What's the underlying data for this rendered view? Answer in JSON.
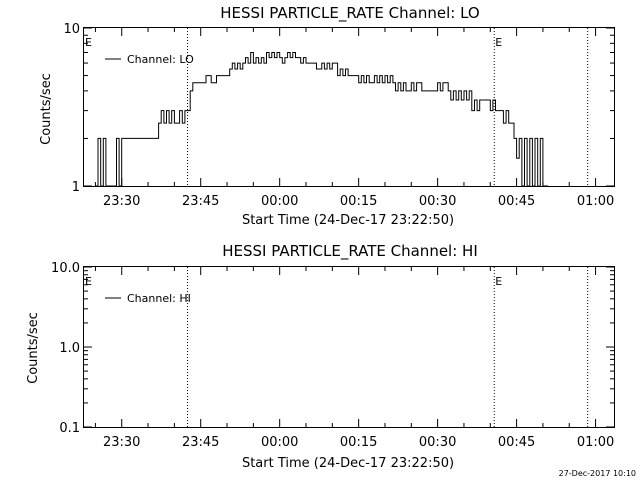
{
  "chart_data": [
    {
      "type": "line",
      "title": "HESSI PARTICLE_RATE Channel: LO",
      "xlabel": "Start Time (24-Dec-17 23:22:50)",
      "ylabel": "Counts/sec",
      "y_scale": "log",
      "ylim": [
        1,
        10
      ],
      "ytick_labels": [
        "1",
        "10"
      ],
      "xlim": [
        "23:22:50",
        "01:03:30"
      ],
      "xticks": [
        {
          "time": "23:30",
          "label": "23:30"
        },
        {
          "time": "23:45",
          "label": "23:45"
        },
        {
          "time": "00:00",
          "label": "00:00"
        },
        {
          "time": "00:15",
          "label": "00:15"
        },
        {
          "time": "00:30",
          "label": "00:30"
        },
        {
          "time": "00:45",
          "label": "00:45"
        },
        {
          "time": "01:00",
          "label": "01:00"
        }
      ],
      "legend_location": "top-left",
      "series": [
        {
          "name": "Channel: LO",
          "color": "#000000",
          "points": [
            [
              "23:25:00",
              1
            ],
            [
              "23:25:30",
              2
            ],
            [
              "23:26:00",
              1
            ],
            [
              "23:26:30",
              2
            ],
            [
              "23:27:00",
              1
            ],
            [
              "23:28:00",
              1
            ],
            [
              "23:29:00",
              2
            ],
            [
              "23:29:30",
              1
            ],
            [
              "23:30:00",
              2
            ],
            [
              "23:32:00",
              2
            ],
            [
              "23:34:00",
              2
            ],
            [
              "23:36:00",
              2
            ],
            [
              "23:37:00",
              2.5
            ],
            [
              "23:37:30",
              3
            ],
            [
              "23:38:00",
              2.5
            ],
            [
              "23:38:30",
              3
            ],
            [
              "23:39:00",
              2.5
            ],
            [
              "23:39:30",
              3
            ],
            [
              "23:40:00",
              2.5
            ],
            [
              "23:41:00",
              3
            ],
            [
              "23:41:30",
              2.5
            ],
            [
              "23:42:00",
              3
            ],
            [
              "23:43:00",
              4
            ],
            [
              "23:43:30",
              4.5
            ],
            [
              "23:44:00",
              4.5
            ],
            [
              "23:45:00",
              4.5
            ],
            [
              "23:46:00",
              5
            ],
            [
              "23:47:00",
              4.5
            ],
            [
              "23:48:00",
              5
            ],
            [
              "23:49:00",
              5
            ],
            [
              "23:50:00",
              5
            ],
            [
              "23:50:30",
              5.5
            ],
            [
              "23:51:00",
              6
            ],
            [
              "23:51:30",
              5.5
            ],
            [
              "23:52:00",
              6
            ],
            [
              "23:52:30",
              5.5
            ],
            [
              "23:53:00",
              6
            ],
            [
              "23:53:30",
              6.5
            ],
            [
              "23:54:00",
              6
            ],
            [
              "23:54:30",
              7
            ],
            [
              "23:55:00",
              6
            ],
            [
              "23:55:30",
              6.5
            ],
            [
              "23:56:00",
              6
            ],
            [
              "23:56:30",
              6.5
            ],
            [
              "23:57:00",
              6
            ],
            [
              "23:57:30",
              7
            ],
            [
              "23:58:00",
              6.5
            ],
            [
              "23:58:30",
              7
            ],
            [
              "23:59:00",
              6.5
            ],
            [
              "23:59:30",
              7
            ],
            [
              "00:00:00",
              6.5
            ],
            [
              "00:00:30",
              6
            ],
            [
              "00:01:00",
              6.5
            ],
            [
              "00:01:30",
              7
            ],
            [
              "00:02:00",
              6.5
            ],
            [
              "00:02:30",
              7
            ],
            [
              "00:03:00",
              6.5
            ],
            [
              "00:04:00",
              6
            ],
            [
              "00:04:30",
              6.5
            ],
            [
              "00:05:00",
              6
            ],
            [
              "00:06:00",
              6
            ],
            [
              "00:07:00",
              5.5
            ],
            [
              "00:08:00",
              6
            ],
            [
              "00:08:30",
              5.5
            ],
            [
              "00:09:00",
              6
            ],
            [
              "00:09:30",
              5.5
            ],
            [
              "00:10:00",
              6
            ],
            [
              "00:11:00",
              5
            ],
            [
              "00:11:30",
              5.5
            ],
            [
              "00:12:00",
              5
            ],
            [
              "00:12:30",
              5.5
            ],
            [
              "00:13:00",
              5
            ],
            [
              "00:14:00",
              5
            ],
            [
              "00:15:00",
              4.5
            ],
            [
              "00:15:30",
              5
            ],
            [
              "00:16:00",
              4.5
            ],
            [
              "00:16:30",
              5
            ],
            [
              "00:17:00",
              4.5
            ],
            [
              "00:18:00",
              5
            ],
            [
              "00:18:30",
              4.5
            ],
            [
              "00:19:00",
              5
            ],
            [
              "00:19:30",
              4.5
            ],
            [
              "00:20:00",
              5
            ],
            [
              "00:20:30",
              4.5
            ],
            [
              "00:21:00",
              5
            ],
            [
              "00:21:30",
              4.5
            ],
            [
              "00:22:00",
              4
            ],
            [
              "00:22:30",
              4.5
            ],
            [
              "00:23:00",
              4
            ],
            [
              "00:23:30",
              4.5
            ],
            [
              "00:24:00",
              4
            ],
            [
              "00:25:00",
              4.5
            ],
            [
              "00:25:30",
              4
            ],
            [
              "00:26:00",
              4.5
            ],
            [
              "00:27:00",
              4
            ],
            [
              "00:28:00",
              4
            ],
            [
              "00:29:00",
              4
            ],
            [
              "00:30:00",
              4.5
            ],
            [
              "00:30:30",
              4
            ],
            [
              "00:31:00",
              4.5
            ],
            [
              "00:32:00",
              4
            ],
            [
              "00:32:30",
              3.5
            ],
            [
              "00:33:00",
              4
            ],
            [
              "00:33:30",
              3.5
            ],
            [
              "00:34:00",
              4
            ],
            [
              "00:34:30",
              3.5
            ],
            [
              "00:35:00",
              4
            ],
            [
              "00:35:30",
              3.5
            ],
            [
              "00:36:00",
              4
            ],
            [
              "00:36:30",
              3
            ],
            [
              "00:37:00",
              3.5
            ],
            [
              "00:37:30",
              3
            ],
            [
              "00:38:00",
              3.5
            ],
            [
              "00:39:00",
              3.5
            ],
            [
              "00:40:00",
              3
            ],
            [
              "00:40:30",
              3.5
            ],
            [
              "00:41:00",
              3
            ],
            [
              "00:42:00",
              3
            ],
            [
              "00:42:30",
              2.5
            ],
            [
              "00:43:00",
              3
            ],
            [
              "00:43:30",
              2.5
            ],
            [
              "00:44:00",
              2.5
            ],
            [
              "00:44:30",
              2
            ],
            [
              "00:45:00",
              1.5
            ],
            [
              "00:45:30",
              2
            ],
            [
              "00:46:00",
              1
            ],
            [
              "00:46:30",
              2
            ],
            [
              "00:47:00",
              1
            ],
            [
              "00:47:30",
              2
            ],
            [
              "00:48:00",
              1
            ],
            [
              "00:48:30",
              2
            ],
            [
              "00:49:00",
              1
            ],
            [
              "00:49:30",
              2
            ],
            [
              "00:50:00",
              1
            ],
            [
              "00:51:00",
              1
            ]
          ]
        }
      ],
      "event_markers": [
        {
          "time": "23:22:50",
          "label": "E"
        },
        {
          "time": "00:40:45",
          "label": "E"
        }
      ],
      "dotted_lines": [
        "23:42:30",
        "00:40:45",
        "00:58:30"
      ]
    },
    {
      "type": "line",
      "title": "HESSI PARTICLE_RATE Channel: HI",
      "xlabel": "Start Time (24-Dec-17 23:22:50)",
      "ylabel": "Counts/sec",
      "y_scale": "log",
      "ylim": [
        0.1,
        10
      ],
      "ytick_labels": [
        "0.1",
        "1.0",
        "10.0"
      ],
      "xlim": [
        "23:22:50",
        "01:03:30"
      ],
      "xticks": [
        {
          "time": "23:30",
          "label": "23:30"
        },
        {
          "time": "23:45",
          "label": "23:45"
        },
        {
          "time": "00:00",
          "label": "00:00"
        },
        {
          "time": "00:15",
          "label": "00:15"
        },
        {
          "time": "00:30",
          "label": "00:30"
        },
        {
          "time": "00:45",
          "label": "00:45"
        },
        {
          "time": "01:00",
          "label": "01:00"
        }
      ],
      "legend_location": "top-left",
      "series": [
        {
          "name": "Channel: HI",
          "color": "#000000",
          "points": []
        }
      ],
      "event_markers": [
        {
          "time": "23:22:50",
          "label": "E"
        },
        {
          "time": "00:40:45",
          "label": "E"
        }
      ],
      "dotted_lines": [
        "23:42:30",
        "00:40:45",
        "00:58:30"
      ]
    }
  ],
  "timestamp": "27-Dec-2017 10:10"
}
